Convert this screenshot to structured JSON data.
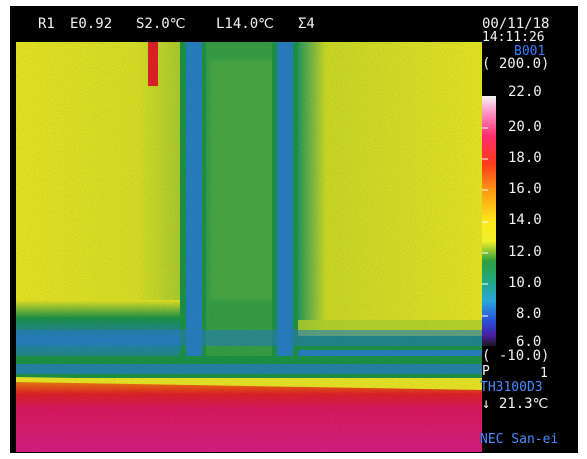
{
  "header": {
    "range_id": "R1",
    "emissivity": "E0.92",
    "sensitivity": "S2.0℃",
    "level": "L14.0℃",
    "averaging": "Σ4"
  },
  "info": {
    "date": "00/11/18",
    "time": "14:11:26",
    "frame_no": "B001",
    "scale_max": "( 200.0)",
    "scale_min": "( -10.0)",
    "mode": "P",
    "mode_value": "1",
    "model": "TH3100D3",
    "point_temp": "↓ 21.3℃",
    "maker": "NEC San-ei"
  },
  "color_scale": {
    "labels": [
      "22.0",
      "20.0",
      "18.0",
      "16.0",
      "14.0",
      "12.0",
      "10.0",
      "8.0",
      "6.0"
    ],
    "colors_top_to_bottom": [
      "#f4f4f4",
      "#ff6fb0",
      "#ff2e5a",
      "#ff3b1e",
      "#ff9a12",
      "#ffe41a",
      "#f4f02a",
      "#2e9f3e",
      "#22a86a",
      "#2aa8d8",
      "#2a4fd8",
      "#4a1c9a",
      "#1a1a1a"
    ]
  },
  "palette": {
    "yellow": "#f2f028",
    "green": "#1f9a4a",
    "blue": "#2a86c8",
    "red": "#e8242c",
    "pink": "#e0208a",
    "orange": "#f4a018",
    "black": "#000000"
  }
}
